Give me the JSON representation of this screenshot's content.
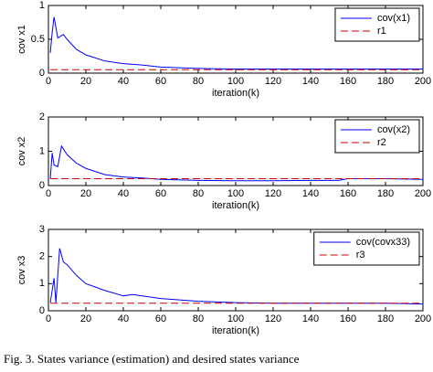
{
  "chart_data": [
    {
      "type": "line",
      "ylabel": "cov x1",
      "xlabel": "iteration(k)",
      "x": [
        1,
        2,
        3,
        5,
        8,
        10,
        15,
        20,
        30,
        40,
        50,
        60,
        80,
        100,
        120,
        140,
        160,
        180,
        200
      ],
      "series": [
        {
          "name": "cov(x1)",
          "color": "#0000ff",
          "linestyle": "solid",
          "values": [
            0.3,
            0.6,
            0.83,
            0.52,
            0.57,
            0.5,
            0.35,
            0.27,
            0.18,
            0.14,
            0.12,
            0.09,
            0.07,
            0.06,
            0.06,
            0.06,
            0.06,
            0.06,
            0.06
          ]
        },
        {
          "name": "r1",
          "color": "#cc0000",
          "linestyle": "dashed",
          "values": [
            0.05,
            0.05,
            0.05,
            0.05,
            0.05,
            0.05,
            0.05,
            0.05,
            0.05,
            0.05,
            0.05,
            0.05,
            0.05,
            0.05,
            0.05,
            0.05,
            0.05,
            0.05,
            0.05
          ]
        }
      ],
      "xlim": [
        0,
        200
      ],
      "xticks": [
        0,
        20,
        40,
        60,
        80,
        100,
        120,
        140,
        160,
        180,
        200
      ],
      "ylim": [
        0,
        1
      ],
      "yticks": [
        0,
        0.5,
        1
      ]
    },
    {
      "type": "line",
      "ylabel": "cov x2",
      "xlabel": "iteration(k)",
      "x": [
        1,
        2,
        3,
        5,
        7,
        10,
        15,
        20,
        30,
        40,
        50,
        60,
        80,
        100,
        120,
        140,
        155,
        160,
        180,
        200
      ],
      "series": [
        {
          "name": "cov(x2)",
          "color": "#0000ff",
          "linestyle": "solid",
          "values": [
            0.2,
            0.95,
            0.6,
            0.55,
            1.15,
            0.9,
            0.65,
            0.5,
            0.32,
            0.25,
            0.22,
            0.18,
            0.15,
            0.14,
            0.14,
            0.15,
            0.15,
            0.2,
            0.2,
            0.18
          ]
        },
        {
          "name": "r2",
          "color": "#cc0000",
          "linestyle": "dashed",
          "values": [
            0.2,
            0.2,
            0.2,
            0.2,
            0.2,
            0.2,
            0.2,
            0.2,
            0.2,
            0.2,
            0.2,
            0.2,
            0.2,
            0.2,
            0.2,
            0.2,
            0.2,
            0.2,
            0.2,
            0.2
          ]
        }
      ],
      "xlim": [
        0,
        200
      ],
      "xticks": [
        0,
        20,
        40,
        60,
        80,
        100,
        120,
        140,
        160,
        180,
        200
      ],
      "ylim": [
        0,
        2
      ],
      "yticks": [
        0,
        1,
        2
      ]
    },
    {
      "type": "line",
      "ylabel": "cov x3",
      "xlabel": "iteration(k)",
      "x": [
        1,
        3,
        4,
        6,
        8,
        10,
        15,
        20,
        30,
        40,
        45,
        60,
        80,
        100,
        120,
        140,
        160,
        180,
        200
      ],
      "series": [
        {
          "name": "cov(covx33)",
          "color": "#0000ff",
          "linestyle": "solid",
          "values": [
            0.3,
            1.2,
            0.3,
            2.3,
            1.8,
            1.7,
            1.3,
            1.0,
            0.75,
            0.55,
            0.6,
            0.45,
            0.35,
            0.3,
            0.28,
            0.28,
            0.28,
            0.28,
            0.25
          ]
        },
        {
          "name": "r3",
          "color": "#cc0000",
          "linestyle": "dashed",
          "values": [
            0.28,
            0.28,
            0.28,
            0.28,
            0.28,
            0.28,
            0.28,
            0.28,
            0.28,
            0.28,
            0.28,
            0.28,
            0.28,
            0.28,
            0.28,
            0.28,
            0.28,
            0.28,
            0.28
          ]
        }
      ],
      "xlim": [
        0,
        200
      ],
      "xticks": [
        0,
        20,
        40,
        60,
        80,
        100,
        120,
        140,
        160,
        180,
        200
      ],
      "ylim": [
        0,
        3
      ],
      "yticks": [
        0,
        1,
        2,
        3
      ]
    }
  ],
  "caption": "Fig. 3. States variance (estimation) and desired states variance"
}
